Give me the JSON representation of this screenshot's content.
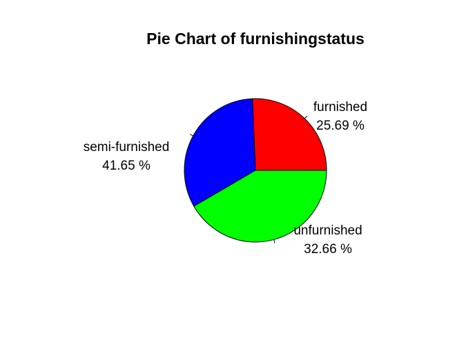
{
  "chart_data": {
    "type": "pie",
    "title": "Pie Chart of furnishingstatus",
    "slices": [
      {
        "category": "furnished",
        "value": 25.69,
        "label": "25.69 %",
        "color": "#FF0000"
      },
      {
        "category": "unfurnished",
        "value": 32.66,
        "label": "32.66 %",
        "color": "#0000FF"
      },
      {
        "category": "semi-furnished",
        "value": 41.65,
        "label": "41.65 %",
        "color": "#00FF00"
      }
    ]
  }
}
